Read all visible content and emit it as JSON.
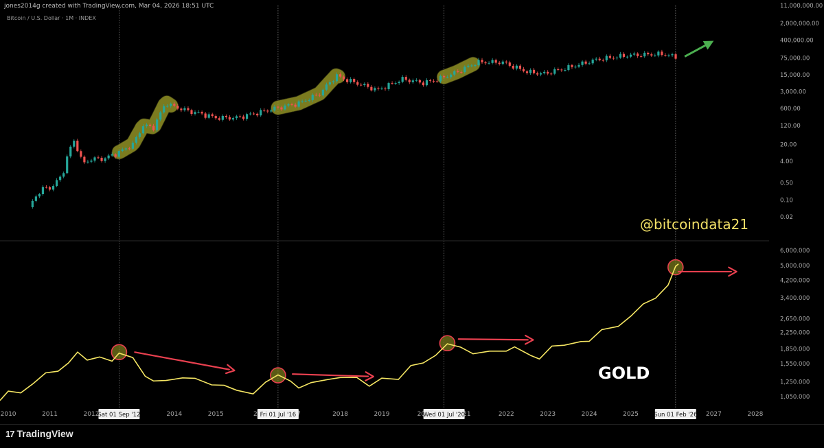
{
  "header": {
    "created_by": "jones2014g created with TradingView.com, Mar 04, 2026 18:51 UTC",
    "symbol": "Bitcoin / U.S. Dollar · 1M · INDEX"
  },
  "annotations": {
    "handle": "@bitcoindata21",
    "gold_label": "GOLD"
  },
  "brand": {
    "logo_text": "TradingView",
    "logo_mark": "17"
  },
  "colors": {
    "background": "#000000",
    "candle_up": "#26a69a",
    "candle_down": "#ef5350",
    "gold_line": "#f5e663",
    "highlight": "#8a8a1e",
    "arrow_red": "#e8404f",
    "arrow_green": "#4caf50",
    "grid": "#333333"
  },
  "chart_data": [
    {
      "type": "line",
      "name_hint": "btc-monthly-candles",
      "y_scale": "log",
      "ylim": [
        0.003,
        11000000
      ],
      "xlim": [
        2009.8,
        2028.3
      ],
      "y_ticks": [
        "11,000,000.00",
        "2,000,000.00",
        "400,000.00",
        "75,000.00",
        "15,000.00",
        "3,000.00",
        "600.00",
        "120.00",
        "20.00",
        "4.00",
        "0.50",
        "0.10",
        "0.02"
      ],
      "y_tick_values": [
        11000000,
        2000000,
        400000,
        75000,
        15000,
        3000,
        600,
        120,
        20,
        4,
        0.5,
        0.1,
        0.02
      ],
      "x": [
        2010.5,
        2010.8,
        2011.0,
        2011.3,
        2011.45,
        2011.6,
        2011.8,
        2012.0,
        2012.3,
        2012.7,
        2013.0,
        2013.25,
        2013.5,
        2013.8,
        2013.92,
        2014.3,
        2014.7,
        2015.0,
        2015.5,
        2016.0,
        2016.5,
        2017.0,
        2017.5,
        2017.9,
        2018.1,
        2018.9,
        2019.5,
        2020.0,
        2020.3,
        2020.8,
        2021.3,
        2021.9,
        2022.5,
        2022.9,
        2023.5,
        2024.2,
        2024.9,
        2025.8,
        2026.1
      ],
      "values": [
        0.05,
        0.3,
        0.3,
        1,
        10,
        30,
        3,
        5,
        5,
        10,
        20,
        120,
        100,
        1100,
        800,
        500,
        350,
        250,
        250,
        400,
        650,
        1000,
        2500,
        14000,
        10000,
        3500,
        10000,
        7000,
        9000,
        19000,
        50000,
        50000,
        20000,
        16500,
        30000,
        65000,
        95000,
        110000,
        78000
      ]
    },
    {
      "type": "line",
      "name_hint": "gold-price",
      "y_scale": "log",
      "ylim": [
        950,
        6500
      ],
      "y_ticks": [
        "6,000.000",
        "5,000.000",
        "4,200.000",
        "3,400.000",
        "2,650.000",
        "2,250.000",
        "1,850.000",
        "1,550.000",
        "1,250.000",
        "1,050.000"
      ],
      "y_tick_values": [
        6000,
        5000,
        4200,
        3400,
        2650,
        2250,
        1850,
        1550,
        1250,
        1050
      ],
      "x": [
        2009.8,
        2010.0,
        2010.3,
        2010.6,
        2010.9,
        2011.2,
        2011.45,
        2011.67,
        2011.9,
        2012.2,
        2012.5,
        2012.67,
        2013.0,
        2013.3,
        2013.5,
        2013.8,
        2014.2,
        2014.5,
        2014.9,
        2015.2,
        2015.5,
        2015.9,
        2016.2,
        2016.5,
        2016.8,
        2017.0,
        2017.3,
        2017.7,
        2018.0,
        2018.4,
        2018.7,
        2019.0,
        2019.4,
        2019.7,
        2020.0,
        2020.3,
        2020.58,
        2020.9,
        2021.2,
        2021.6,
        2022.0,
        2022.2,
        2022.6,
        2022.8,
        2023.1,
        2023.4,
        2023.8,
        2024.0,
        2024.3,
        2024.7,
        2025.0,
        2025.3,
        2025.6,
        2025.9,
        2026.08,
        2026.15
      ],
      "values": [
        1000,
        1120,
        1090,
        1230,
        1380,
        1430,
        1550,
        1800,
        1600,
        1700,
        1580,
        1780,
        1650,
        1350,
        1250,
        1280,
        1300,
        1310,
        1200,
        1200,
        1130,
        1080,
        1250,
        1350,
        1270,
        1150,
        1250,
        1270,
        1330,
        1300,
        1200,
        1290,
        1300,
        1500,
        1580,
        1700,
        1980,
        1880,
        1750,
        1800,
        1800,
        1900,
        1700,
        1650,
        1900,
        1950,
        2000,
        2050,
        2300,
        2450,
        2700,
        3200,
        3350,
        4000,
        4900,
        5100
      ]
    }
  ],
  "x_axis": {
    "ticks": [
      "2010",
      "2011",
      "2012",
      "2014",
      "2015",
      "2018",
      "2019",
      "2022",
      "2023",
      "2024",
      "2025",
      "2027",
      "2028"
    ],
    "tick_values": [
      2010,
      2011,
      2012,
      2014,
      2015,
      2018,
      2019,
      2022,
      2023,
      2024,
      2025,
      2027,
      2028
    ],
    "crosshair_labels": [
      "Sat 01 Sep '12",
      "Fri 01 Jul '16",
      "Wed 01 Jul '20",
      "Sun 01 Feb '26"
    ],
    "crosshair_dates": [
      2012.67,
      2016.5,
      2020.5,
      2026.08
    ],
    "partial_labels": [
      "20",
      "17",
      "20",
      "21"
    ],
    "partial_label_dates": [
      2016.0,
      2016.95,
      2019.95,
      2021.05
    ]
  },
  "highlights": {
    "btc_segments": [
      [
        2012.67,
        2013.92
      ],
      [
        2016.5,
        2017.95
      ],
      [
        2020.5,
        2021.2
      ]
    ],
    "gold_circles": [
      2012.67,
      2016.5,
      2020.58,
      2026.08
    ]
  },
  "arrows": {
    "gold_red": [
      [
        2013.05,
        1780,
        2015.45,
        1430
      ],
      [
        2016.85,
        1370,
        2018.8,
        1330
      ],
      [
        2020.85,
        2080,
        2022.65,
        2060
      ],
      [
        2026.15,
        4650,
        2027.55,
        4650
      ]
    ],
    "btc_green": [
      2026.3,
      85000,
      2027.0,
      380000
    ]
  }
}
